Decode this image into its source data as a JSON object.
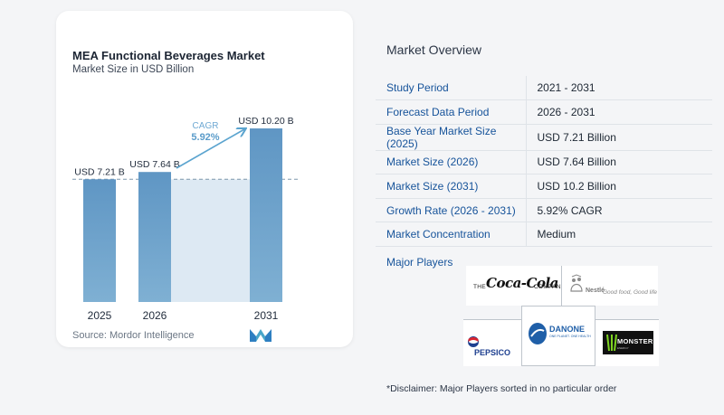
{
  "colors": {
    "bar": "#5b93c2",
    "bar_fill_top": "#5f96c4",
    "bar_fill_bottom": "#7fb0d3",
    "region": "#dde9f3",
    "arrow": "#5ba4cf",
    "key_text": "#16539a"
  },
  "chart": {
    "title": "MEA Functional Beverages Market",
    "subtitle": "Market Size in USD Billion",
    "source": "Source:  Mordor Intelligence",
    "cagr_label": "CAGR",
    "cagr_value": "5.92%"
  },
  "chart_data": {
    "type": "bar",
    "title": "MEA Functional Beverages Market",
    "subtitle": "Market Size in USD Billion",
    "categories": [
      "2025",
      "2026",
      "2031"
    ],
    "values": [
      7.21,
      7.64,
      10.2
    ],
    "data_labels": [
      "USD 7.21 B",
      "USD 7.64 B",
      "USD 10.20 B"
    ],
    "annotation": {
      "text": "CAGR 5.92%",
      "from": "2026",
      "to": "2031"
    },
    "baseline_reference": 7.21,
    "grid": false,
    "legend": "none"
  },
  "overview": {
    "title": "Market Overview",
    "rows": [
      {
        "key": "Study Period",
        "value": "2021 - 2031"
      },
      {
        "key": "Forecast Data Period",
        "value": "2026 - 2031"
      },
      {
        "key": "Base Year Market Size (2025)",
        "value": "USD 7.21 Billion"
      },
      {
        "key": "Market Size (2026)",
        "value": "USD 7.64 Billion"
      },
      {
        "key": "Market Size (2031)",
        "value": "USD 10.2 Billion"
      },
      {
        "key": "Growth Rate (2026 - 2031)",
        "value": "5.92% CAGR"
      },
      {
        "key": "Market Concentration",
        "value": "Medium"
      }
    ],
    "major_players_title": "Major Players",
    "players": {
      "coke_the": "THE",
      "coke_script": "Coca-Cola",
      "coke_company": "COMPANY",
      "nestle": "Nestlé",
      "nestle_tagline": "Good food, Good life",
      "pepsi": "PEPSICO",
      "danone": "DANONE",
      "danone_tagline": "ONE PLANET. ONE HEALTH",
      "monster": "MONSTER",
      "monster_tagline": "ENERGY"
    },
    "disclaimer": "*Disclaimer: Major Players sorted in no particular order"
  },
  "icons": {
    "brand_mark": "mordor-intelligence-logo-icon"
  }
}
